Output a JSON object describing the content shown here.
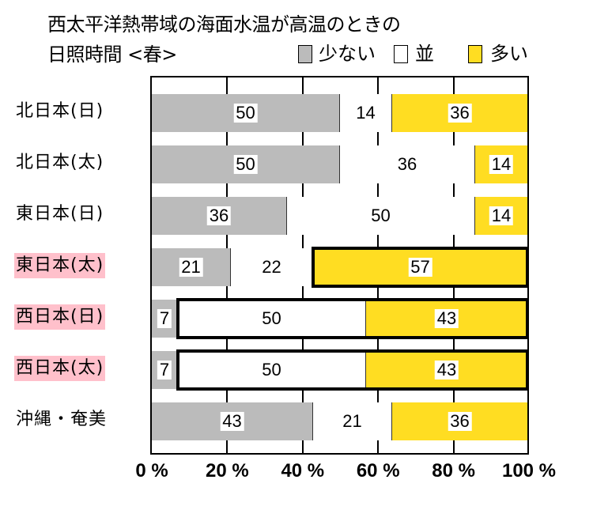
{
  "title": {
    "line1": "西太平洋熱帯域の海面水温が高温のときの",
    "line2": "日照時間 <春>"
  },
  "legend": [
    {
      "label": "少ない",
      "color": "#bbbbbb"
    },
    {
      "label": "並",
      "color": "#ffffff"
    },
    {
      "label": "多い",
      "color": "#ffdd22"
    }
  ],
  "colors": {
    "few": "#bbbbbb",
    "normal": "#ffffff",
    "many": "#ffdd22",
    "highlight_label": "#ffc0cb",
    "border": "#000000"
  },
  "axis": {
    "ticks": [
      "0 %",
      "20 %",
      "40 %",
      "60 %",
      "80 %",
      "100 %"
    ]
  },
  "chart_data": {
    "type": "bar",
    "orientation": "horizontal",
    "stacked": true,
    "normalized_percent": true,
    "title": "西太平洋熱帯域の海面水温が高温のときの日照時間 <春>",
    "xlabel": "",
    "ylabel": "",
    "xlim": [
      0,
      100
    ],
    "x_tick_labels": [
      "0 %",
      "20 %",
      "40 %",
      "60 %",
      "80 %",
      "100 %"
    ],
    "grid": true,
    "legend_position": "top-right",
    "categories": [
      "北日本(日)",
      "北日本(太)",
      "東日本(日)",
      "東日本(太)",
      "西日本(日)",
      "西日本(太)",
      "沖縄・奄美"
    ],
    "series": [
      {
        "name": "少ない",
        "color": "#bbbbbb",
        "values": [
          50,
          50,
          36,
          21,
          7,
          7,
          43
        ]
      },
      {
        "name": "並",
        "color": "#ffffff",
        "values": [
          14,
          36,
          50,
          22,
          50,
          50,
          21
        ]
      },
      {
        "name": "多い",
        "color": "#ffdd22",
        "values": [
          36,
          14,
          14,
          57,
          43,
          43,
          36
        ]
      }
    ],
    "annotations": [
      {
        "category": "東日本(太)",
        "highlighted_label": true,
        "bold_outline_series": [
          "多い"
        ]
      },
      {
        "category": "西日本(日)",
        "highlighted_label": true,
        "bold_outline_series": [
          "並",
          "多い"
        ]
      },
      {
        "category": "西日本(太)",
        "highlighted_label": true,
        "bold_outline_series": [
          "並",
          "多い"
        ]
      }
    ]
  },
  "rows": [
    {
      "label": "北日本(日)",
      "highlight": false,
      "few": 50,
      "normal": 14,
      "many": 36,
      "outline": null
    },
    {
      "label": "北日本(太)",
      "highlight": false,
      "few": 50,
      "normal": 36,
      "many": 14,
      "outline": null
    },
    {
      "label": "東日本(日)",
      "highlight": false,
      "few": 36,
      "normal": 50,
      "many": 14,
      "outline": null
    },
    {
      "label": "東日本(太)",
      "highlight": true,
      "few": 21,
      "normal": 22,
      "many": 57,
      "outline": "many"
    },
    {
      "label": "西日本(日)",
      "highlight": true,
      "few": 7,
      "normal": 50,
      "many": 43,
      "outline": "normal+many"
    },
    {
      "label": "西日本(太)",
      "highlight": true,
      "few": 7,
      "normal": 50,
      "many": 43,
      "outline": "normal+many"
    },
    {
      "label": "沖縄・奄美",
      "highlight": false,
      "few": 43,
      "normal": 21,
      "many": 36,
      "outline": null
    }
  ]
}
